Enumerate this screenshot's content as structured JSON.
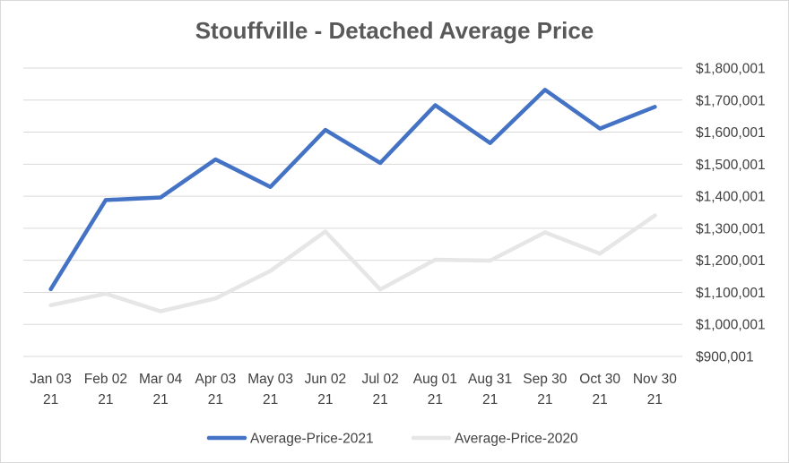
{
  "chart_data": {
    "type": "line",
    "title": "Stouffville - Detached Average Price",
    "xlabel": "",
    "ylabel": "",
    "categories": [
      [
        "Jan 03",
        "21"
      ],
      [
        "Feb 02",
        "21"
      ],
      [
        "Mar 04",
        "21"
      ],
      [
        "Apr 03",
        "21"
      ],
      [
        "May 03",
        "21"
      ],
      [
        "Jun 02",
        "21"
      ],
      [
        "Jul 02",
        "21"
      ],
      [
        "Aug 01",
        "21"
      ],
      [
        "Aug 31",
        "21"
      ],
      [
        "Sep 30",
        "21"
      ],
      [
        "Oct 30",
        "21"
      ],
      [
        "Nov 30",
        "21"
      ]
    ],
    "yaxis_position": "right",
    "ylim": [
      900001,
      1800001
    ],
    "yticks": [
      900001,
      1000001,
      1100001,
      1200001,
      1300001,
      1400001,
      1500001,
      1600001,
      1700001,
      1800001
    ],
    "ytick_labels": [
      "$900,001",
      "$1,000,001",
      "$1,100,001",
      "$1,200,001",
      "$1,300,001",
      "$1,400,001",
      "$1,500,001",
      "$1,600,001",
      "$1,700,001",
      "$1,800,001"
    ],
    "grid": true,
    "legend_position": "bottom",
    "series": [
      {
        "name": "Average-Price-2021",
        "color": "#4472c4",
        "values": [
          1110000,
          1388000,
          1396000,
          1515000,
          1429000,
          1607000,
          1504000,
          1684000,
          1566000,
          1732000,
          1611000,
          1679000
        ]
      },
      {
        "name": "Average-Price-2020",
        "color": "#e7e6e6",
        "values": [
          1060000,
          1096000,
          1041000,
          1081000,
          1167000,
          1290000,
          1109000,
          1202000,
          1199000,
          1287000,
          1221000,
          1340000
        ]
      }
    ]
  }
}
